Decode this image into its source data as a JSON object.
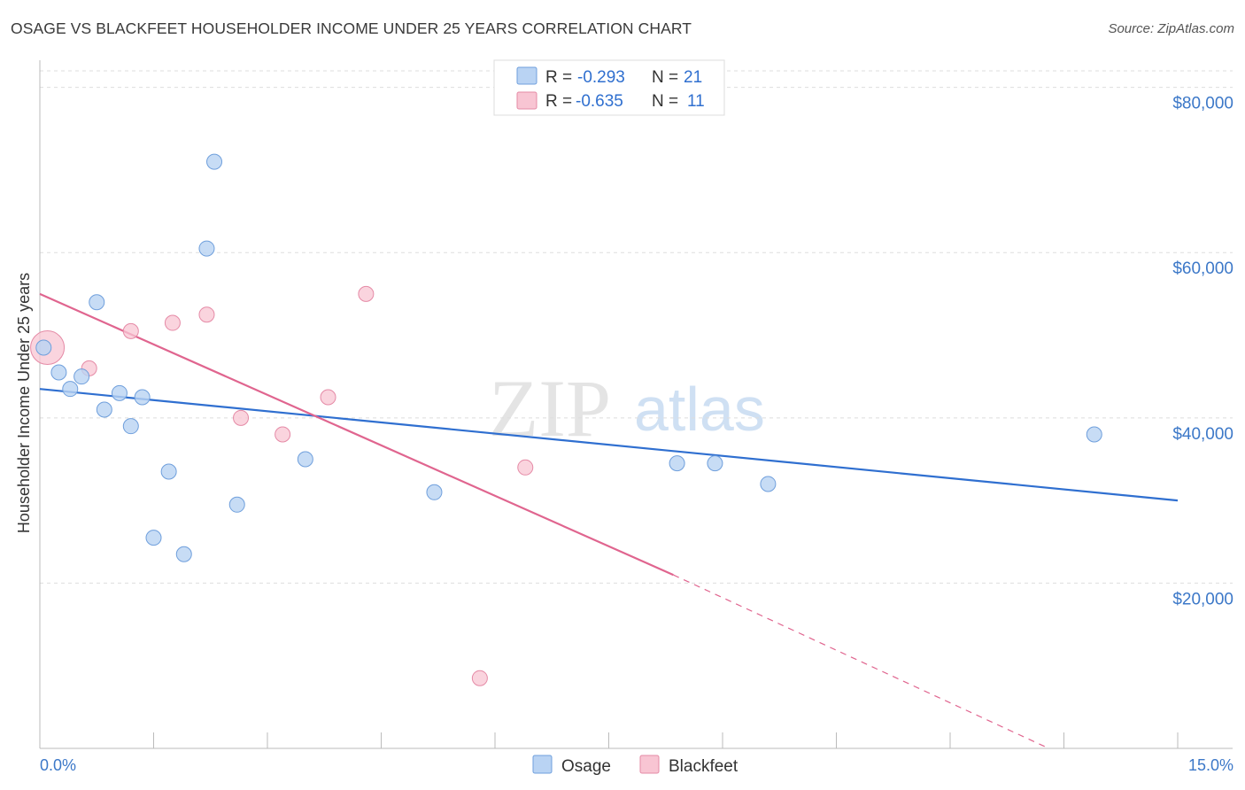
{
  "header": {
    "title": "OSAGE VS BLACKFEET HOUSEHOLDER INCOME UNDER 25 YEARS CORRELATION CHART",
    "source": "Source: ZipAtlas.com"
  },
  "watermark": {
    "zip": "ZIP",
    "atlas": "atlas"
  },
  "legend": {
    "rows": [
      {
        "r_label": "R = ",
        "r_value": "-0.293",
        "n_label": "N = ",
        "n_value": "21"
      },
      {
        "r_label": "R = ",
        "r_value": "-0.635",
        "n_label": "N = ",
        "n_value": "11"
      }
    ]
  },
  "colors": {
    "osage_fill": "#b9d3f3",
    "osage_stroke": "#6f9fdc",
    "osage_line": "#2f6fd0",
    "blackfeet_fill": "#f8c5d3",
    "blackfeet_stroke": "#e58aa6",
    "blackfeet_line": "#e0658f",
    "grid": "#dddddd",
    "tick_text": "#3c78c8"
  },
  "chart_data": {
    "type": "scatter",
    "title": "OSAGE VS BLACKFEET HOUSEHOLDER INCOME UNDER 25 YEARS CORRELATION CHART",
    "xlabel": "",
    "ylabel": "Householder Income Under 25 years",
    "xlim": [
      0,
      15
    ],
    "ylim": [
      0,
      82000
    ],
    "x_tick_labels": [
      "0.0%",
      "15.0%"
    ],
    "y_ticks": [
      20000,
      40000,
      60000,
      80000
    ],
    "y_tick_labels": [
      "$20,000",
      "$40,000",
      "$60,000",
      "$80,000"
    ],
    "grid": true,
    "series": [
      {
        "name": "Osage",
        "points": [
          [
            0.05,
            48500
          ],
          [
            0.25,
            45500
          ],
          [
            0.4,
            43500
          ],
          [
            0.55,
            45000
          ],
          [
            0.75,
            54000
          ],
          [
            0.85,
            41000
          ],
          [
            1.05,
            43000
          ],
          [
            1.2,
            39000
          ],
          [
            1.35,
            42500
          ],
          [
            1.5,
            25500
          ],
          [
            1.7,
            33500
          ],
          [
            1.9,
            23500
          ],
          [
            2.2,
            60500
          ],
          [
            2.3,
            71000
          ],
          [
            2.6,
            29500
          ],
          [
            3.5,
            35000
          ],
          [
            5.2,
            31000
          ],
          [
            8.4,
            34500
          ],
          [
            8.9,
            34500
          ],
          [
            9.6,
            32000
          ],
          [
            13.9,
            38000
          ]
        ],
        "trend": {
          "x0": 0,
          "y0": 43500,
          "x1": 15,
          "y1": 30000
        }
      },
      {
        "name": "Blackfeet",
        "points": [
          [
            0.1,
            48500
          ],
          [
            0.65,
            46000
          ],
          [
            1.2,
            50500
          ],
          [
            1.75,
            51500
          ],
          [
            2.2,
            52500
          ],
          [
            2.65,
            40000
          ],
          [
            3.2,
            38000
          ],
          [
            3.8,
            42500
          ],
          [
            4.3,
            55000
          ],
          [
            5.8,
            8500
          ],
          [
            6.4,
            34000
          ]
        ],
        "trend": {
          "x0": 0,
          "y0": 55000,
          "x1": 8.35,
          "y1": 21000,
          "dash_x1": 13.3,
          "dash_y1": 0
        }
      }
    ],
    "legend": [
      "Osage",
      "Blackfeet"
    ]
  }
}
